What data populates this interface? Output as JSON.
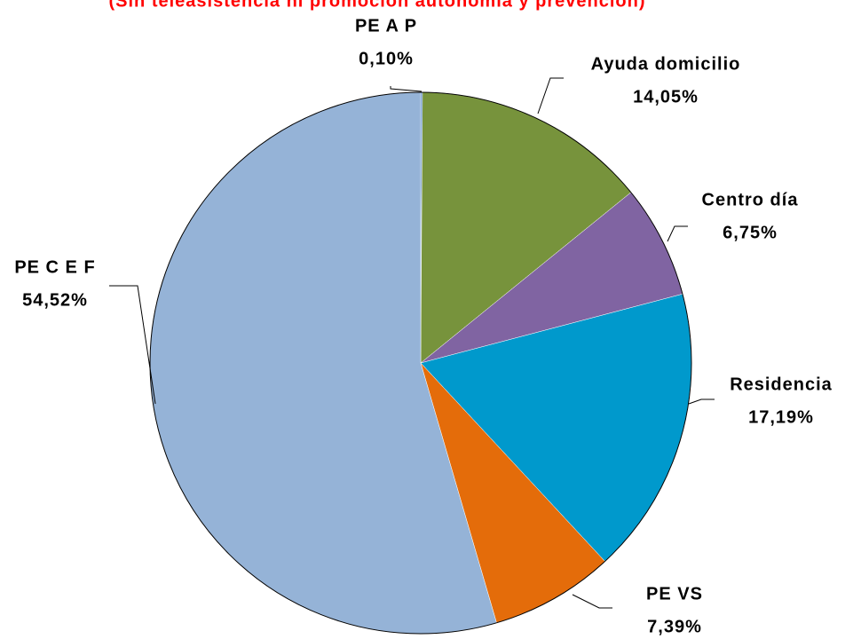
{
  "chart_data": {
    "type": "pie",
    "subtitle": "(Sin teleasistencia ni promoción autonomía y prevención)",
    "categories": [
      "PE A P",
      "Ayuda domicilio",
      "Centro día",
      "Residencia",
      "PE VS",
      "PE C E F"
    ],
    "values": [
      0.1,
      14.05,
      6.75,
      17.19,
      7.39,
      54.52
    ],
    "value_labels": [
      "0,10%",
      "14,05%",
      "6,75%",
      "17,19%",
      "7,39%",
      "54,52%"
    ],
    "colors": [
      "#4f81bd",
      "#77933c",
      "#8064a2",
      "#0099cc",
      "#e46c0a",
      "#95b3d7"
    ]
  }
}
